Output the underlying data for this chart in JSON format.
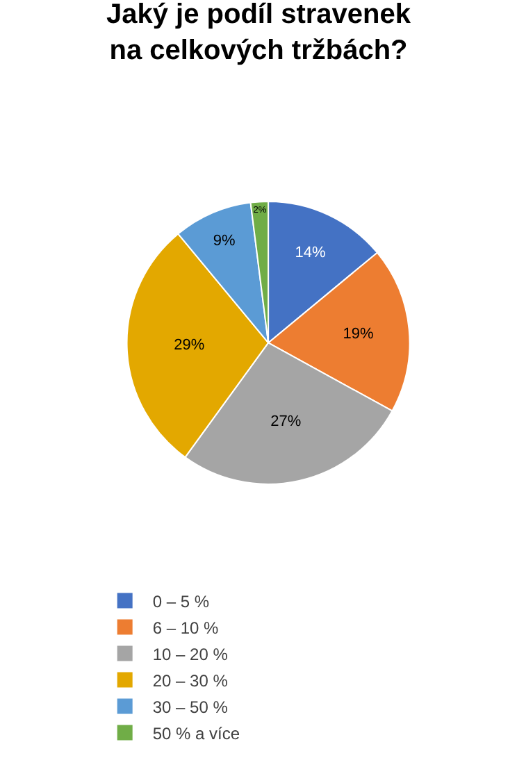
{
  "chart_data": {
    "type": "pie",
    "title": "Jaký je podíl stravenek na celkových tržbách?",
    "categories": [
      "0 – 5 %",
      "6 – 10 %",
      "10 – 20 %",
      "20 – 30 %",
      "30 – 50 %",
      "50 % a více"
    ],
    "values": [
      14,
      19,
      27,
      29,
      9,
      2
    ],
    "value_labels": [
      "14%",
      "19%",
      "27%",
      "29%",
      "9%",
      "2%"
    ],
    "colors": [
      "#4472c4",
      "#ed7d31",
      "#a5a5a5",
      "#e3a800",
      "#5b9bd5",
      "#70ad47"
    ],
    "legend": "bottom"
  }
}
